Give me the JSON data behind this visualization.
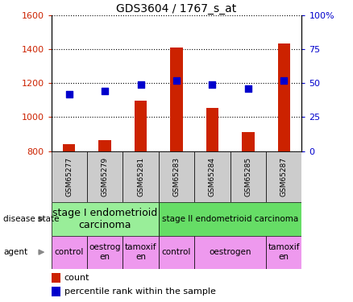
{
  "title": "GDS3604 / 1767_s_at",
  "samples": [
    "GSM65277",
    "GSM65279",
    "GSM65281",
    "GSM65283",
    "GSM65284",
    "GSM65285",
    "GSM65287"
  ],
  "counts": [
    840,
    865,
    1095,
    1410,
    1055,
    910,
    1435
  ],
  "percentiles": [
    42,
    44,
    49,
    52,
    49,
    46,
    52
  ],
  "ylim_left": [
    800,
    1600
  ],
  "ylim_right": [
    0,
    100
  ],
  "left_ticks": [
    800,
    1000,
    1200,
    1400,
    1600
  ],
  "right_ticks": [
    0,
    25,
    50,
    75,
    100
  ],
  "right_tick_labels": [
    "0",
    "25",
    "50",
    "75",
    "100%"
  ],
  "bar_color": "#cc2200",
  "dot_color": "#0000cc",
  "sample_bg_color": "#cccccc",
  "disease_states": [
    {
      "label": "stage I endometrioid\ncarcinoma",
      "start": 0,
      "end": 3,
      "color": "#99ee99",
      "fontsize": 9
    },
    {
      "label": "stage II endometrioid carcinoma",
      "start": 3,
      "end": 7,
      "color": "#66dd66",
      "fontsize": 7.5
    }
  ],
  "agents": [
    {
      "label": "control",
      "start": 0,
      "end": 1,
      "color": "#ee99ee"
    },
    {
      "label": "oestrog\nen",
      "start": 1,
      "end": 2,
      "color": "#ee99ee"
    },
    {
      "label": "tamoxif\nen",
      "start": 2,
      "end": 3,
      "color": "#ee99ee"
    },
    {
      "label": "control",
      "start": 3,
      "end": 4,
      "color": "#ee99ee"
    },
    {
      "label": "oestrogen",
      "start": 4,
      "end": 6,
      "color": "#ee99ee"
    },
    {
      "label": "tamoxif\nen",
      "start": 6,
      "end": 7,
      "color": "#ee99ee"
    }
  ],
  "left_tick_color": "#cc2200",
  "right_tick_color": "#0000cc",
  "title_fontsize": 10,
  "bar_width": 0.35
}
